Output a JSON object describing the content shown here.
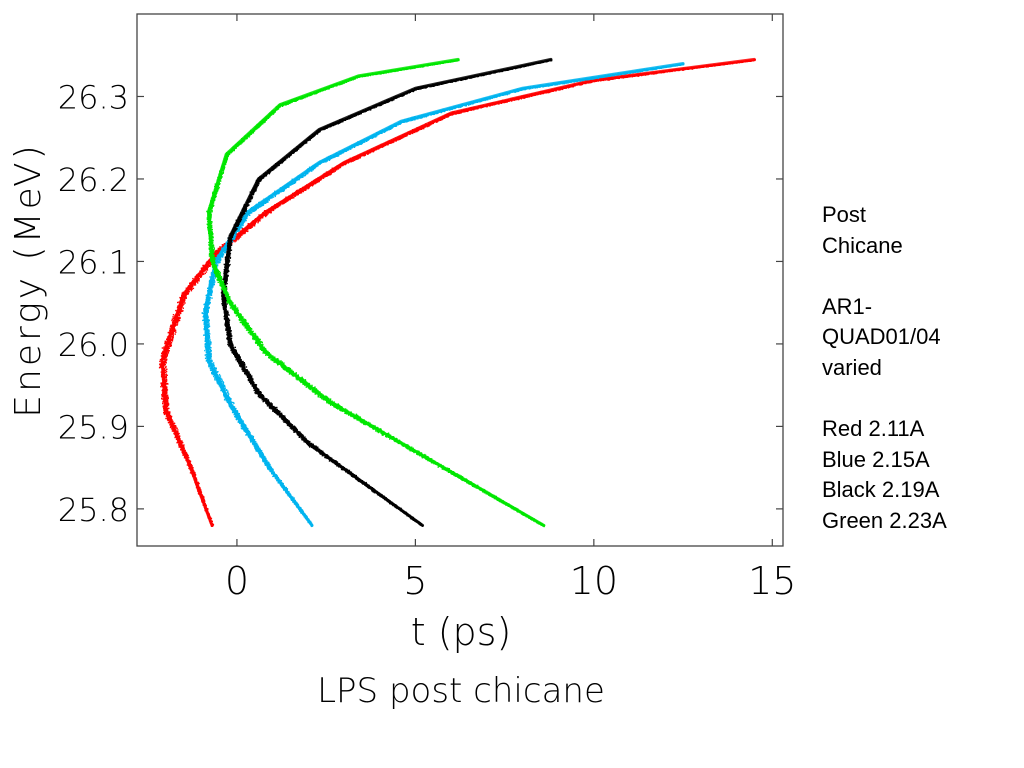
{
  "chart_data": {
    "type": "scatter",
    "title": "LPS post chicane",
    "xlabel": "t (ps)",
    "ylabel": "Energy (MeV)",
    "xlim": [
      -2.8,
      15.3
    ],
    "ylim": [
      25.755,
      26.4
    ],
    "xticks": [
      0,
      5,
      10,
      15
    ],
    "xtick_labels": [
      "0",
      "5",
      "10",
      "15"
    ],
    "yticks": [
      25.8,
      25.9,
      26.0,
      26.1,
      26.2,
      26.3
    ],
    "ytick_labels": [
      "25.8",
      "25.9",
      "26.0",
      "26.1",
      "26.2",
      "26.3"
    ],
    "grid": false,
    "legend": "right",
    "series": [
      {
        "name": "Red 2.11A",
        "color": "#ff0000",
        "x": [
          -0.7,
          -1.3,
          -2.0,
          -2.1,
          -1.5,
          -0.6,
          0.8,
          3.0,
          6.0,
          10.0,
          14.5
        ],
        "y": [
          25.78,
          25.85,
          25.92,
          25.98,
          26.06,
          26.11,
          26.16,
          26.22,
          26.28,
          26.32,
          26.345
        ],
        "width": [
          0.08,
          0.14,
          0.2,
          0.24,
          0.22,
          0.2,
          0.16,
          0.12,
          0.09,
          0.07,
          0.04
        ]
      },
      {
        "name": "Blue 2.15A",
        "color": "#00b4ee",
        "x": [
          2.1,
          0.9,
          -0.1,
          -0.8,
          -0.9,
          -0.6,
          0.3,
          2.3,
          4.6,
          8.0,
          12.5
        ],
        "y": [
          25.78,
          25.85,
          25.92,
          25.98,
          26.04,
          26.1,
          26.16,
          26.22,
          26.27,
          26.31,
          26.34
        ],
        "width": [
          0.08,
          0.14,
          0.19,
          0.21,
          0.2,
          0.19,
          0.16,
          0.12,
          0.09,
          0.07,
          0.04
        ]
      },
      {
        "name": "Black 2.19A",
        "color": "#000000",
        "x": [
          5.2,
          3.6,
          2.0,
          0.6,
          -0.2,
          -0.4,
          -0.2,
          0.6,
          2.3,
          5.0,
          8.8
        ],
        "y": [
          25.78,
          25.83,
          25.88,
          25.94,
          26.0,
          26.06,
          26.13,
          26.2,
          26.26,
          26.31,
          26.345
        ],
        "width": [
          0.06,
          0.1,
          0.14,
          0.17,
          0.18,
          0.17,
          0.15,
          0.12,
          0.09,
          0.07,
          0.04
        ]
      },
      {
        "name": "Green 2.23A",
        "color": "#00e600",
        "x": [
          8.6,
          6.6,
          4.6,
          2.6,
          0.8,
          -0.2,
          -0.7,
          -0.8,
          -0.3,
          1.2,
          3.4,
          6.2
        ],
        "y": [
          25.78,
          25.83,
          25.88,
          25.93,
          25.99,
          26.05,
          26.1,
          26.16,
          26.23,
          26.29,
          26.325,
          26.345
        ],
        "width": [
          0.06,
          0.1,
          0.13,
          0.16,
          0.18,
          0.18,
          0.17,
          0.15,
          0.12,
          0.09,
          0.06,
          0.04
        ]
      }
    ]
  },
  "legend_lines": [
    "Post",
    "Chicane",
    "",
    "AR1-",
    "QUAD01/04",
    "varied",
    "",
    "Red 2.11A",
    "Blue 2.15A",
    "Black 2.19A",
    "Green 2.23A"
  ]
}
